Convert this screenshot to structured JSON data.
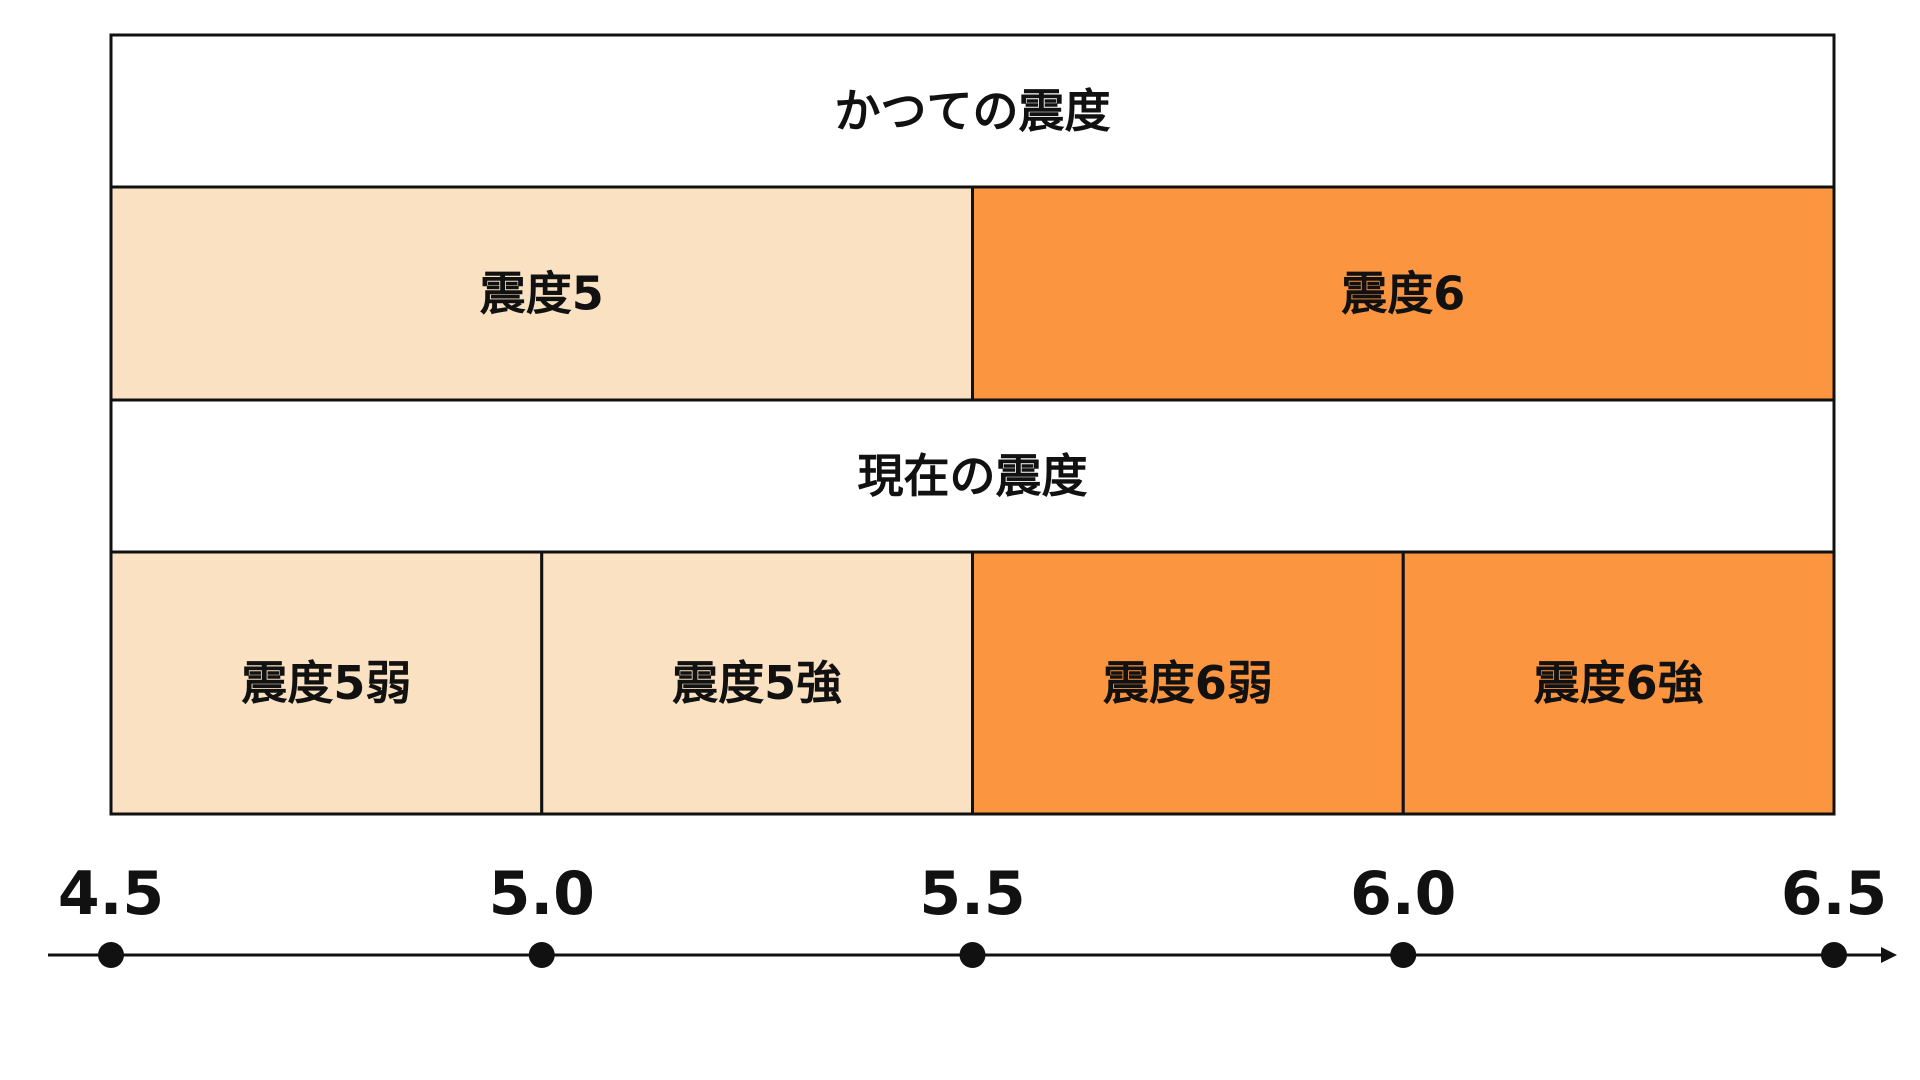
{
  "colors": {
    "light": "#f9e1c1",
    "strong": "#fc953f",
    "header": "#ffffff",
    "border": "#111111"
  },
  "former": {
    "header": "かつての震度",
    "bands": [
      {
        "label": "震度5",
        "from": 4.5,
        "to": 5.5,
        "tone": "light"
      },
      {
        "label": "震度6",
        "from": 5.5,
        "to": 6.5,
        "tone": "strong"
      }
    ]
  },
  "current": {
    "header": "現在の震度",
    "bands": [
      {
        "label": "震度5弱",
        "from": 4.5,
        "to": 5.0,
        "tone": "light"
      },
      {
        "label": "震度5強",
        "from": 5.0,
        "to": 5.5,
        "tone": "light"
      },
      {
        "label": "震度6弱",
        "from": 5.5,
        "to": 6.0,
        "tone": "strong"
      },
      {
        "label": "震度6強",
        "from": 6.0,
        "to": 6.5,
        "tone": "strong"
      }
    ]
  },
  "axis": {
    "ticks": [
      {
        "value": 4.5,
        "label": "4.5"
      },
      {
        "value": 5.0,
        "label": "5.0"
      },
      {
        "value": 5.5,
        "label": "5.5"
      },
      {
        "value": 6.0,
        "label": "6.0"
      },
      {
        "value": 6.5,
        "label": "6.5"
      }
    ]
  }
}
